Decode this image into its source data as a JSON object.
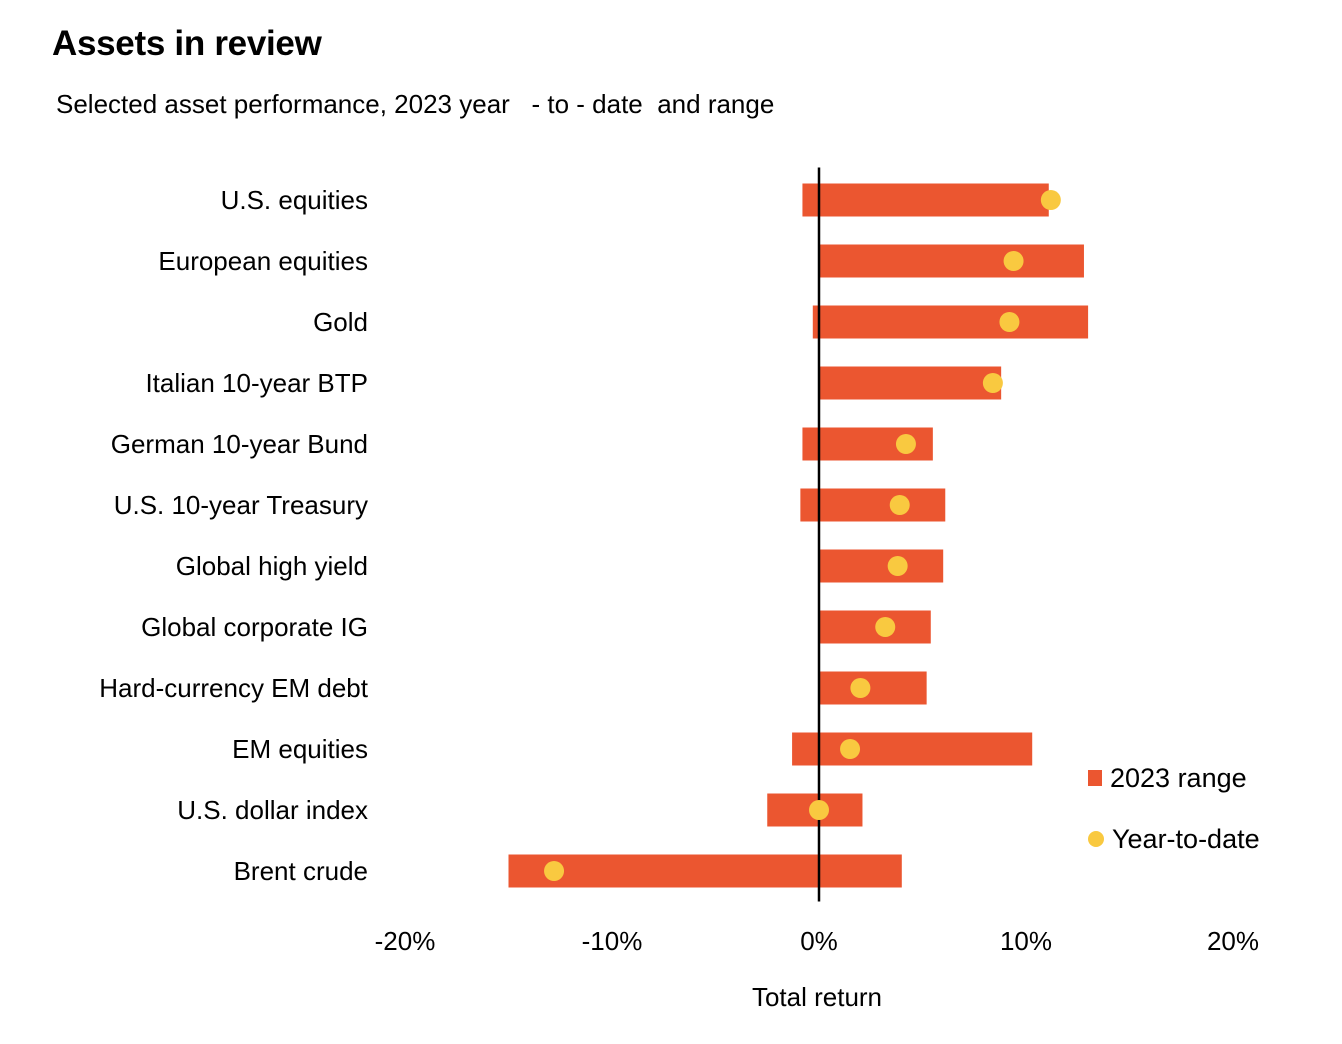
{
  "header": {
    "title": "Assets in review",
    "subtitle": "Selected asset performance, 2023 year   - to - date  and range"
  },
  "legend": {
    "range_label": "2023 range",
    "ytd_label": "Year-to-date"
  },
  "colors": {
    "range": "#EB5630",
    "ytd": "#F9C940",
    "zero_line": "#000000"
  },
  "chart_data": {
    "type": "bar",
    "title": "Assets in review",
    "subtitle": "Selected asset performance, 2023 year   - to - date  and range",
    "xlabel": "Total return",
    "ylabel": "",
    "xlim": [
      -20,
      20
    ],
    "xticks": [
      -20,
      -10,
      0,
      10,
      20
    ],
    "xtick_labels": [
      "-20%",
      "-10%",
      "0%",
      "10%",
      "20%"
    ],
    "grid": false,
    "legend_position": "bottom-right",
    "categories": [
      "U.S. equities",
      "European equities",
      "Gold",
      "Italian 10-year BTP",
      "German 10-year Bund",
      "U.S. 10-year Treasury",
      "Global high yield",
      "Global corporate IG",
      "Hard-currency EM debt",
      "EM equities",
      "U.S. dollar index",
      "Brent crude"
    ],
    "series": [
      {
        "name": "2023 range",
        "type": "range",
        "low": [
          -0.8,
          0.0,
          -0.3,
          0.0,
          -0.8,
          -0.9,
          0.0,
          0.0,
          0.0,
          -1.3,
          -2.5,
          -15.0
        ],
        "high": [
          11.1,
          12.8,
          13.0,
          8.8,
          5.5,
          6.1,
          6.0,
          5.4,
          5.2,
          10.3,
          2.1,
          4.0
        ]
      },
      {
        "name": "Year-to-date",
        "type": "point",
        "values": [
          11.2,
          9.4,
          9.2,
          8.4,
          4.2,
          3.9,
          3.8,
          3.2,
          2.0,
          1.5,
          0.0,
          -12.8
        ]
      }
    ]
  }
}
